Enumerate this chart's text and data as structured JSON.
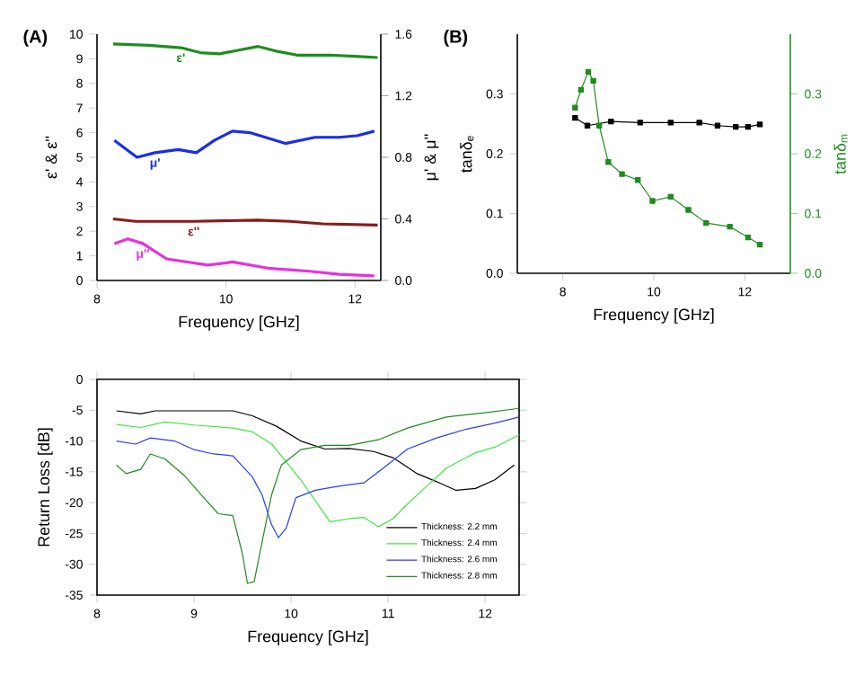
{
  "chart_data": [
    {
      "type": "line",
      "title": "(A)",
      "xlabel": "Frequency [GHz]",
      "ylabel": "ε' & ε''",
      "y2label": "μ' & μ''",
      "xlim": [
        8,
        12.4
      ],
      "xticks": [
        8,
        10,
        12
      ],
      "ylim": [
        0,
        10
      ],
      "yticks": [
        0,
        1,
        2,
        3,
        4,
        5,
        6,
        7,
        8,
        9,
        10
      ],
      "y2lim": [
        0,
        1.6
      ],
      "y2ticks": [
        {
          "value": 0,
          "label": "0.0"
        },
        0.4,
        0.8,
        1.2,
        1.6
      ],
      "legend": false,
      "marker": "none",
      "series": [
        {
          "name": "ε'",
          "color": "#1e8c1e",
          "x": [
            8.25,
            8.8,
            9.3,
            9.6,
            9.9,
            10.2,
            10.5,
            10.8,
            11.1,
            11.6,
            12.0,
            12.35
          ],
          "values": [
            9.6,
            9.55,
            9.45,
            9.25,
            9.2,
            9.35,
            9.5,
            9.3,
            9.15,
            9.15,
            9.1,
            9.05
          ]
        },
        {
          "name": "μ'",
          "color": "#1a2ee8",
          "axis": "y2",
          "x": [
            8.27,
            8.62,
            8.9,
            9.26,
            9.54,
            9.82,
            10.1,
            10.37,
            10.92,
            11.38,
            11.75,
            12.03,
            12.3
          ],
          "values": [
            0.91,
            0.8,
            0.83,
            0.85,
            0.83,
            0.91,
            0.97,
            0.96,
            0.89,
            0.93,
            0.93,
            0.94,
            0.97
          ]
        },
        {
          "name": "ε''",
          "color": "#8b1a1a",
          "x": [
            8.25,
            8.6,
            9.5,
            10.5,
            11.0,
            11.5,
            12.35
          ],
          "values": [
            2.5,
            2.4,
            2.4,
            2.45,
            2.4,
            2.3,
            2.25
          ]
        },
        {
          "name": "μ''",
          "color": "#e830e0",
          "axis": "y2",
          "x": [
            8.27,
            8.48,
            8.71,
            9.08,
            9.72,
            10.1,
            10.65,
            11.3,
            11.75,
            12.3
          ],
          "values": [
            0.24,
            0.27,
            0.24,
            0.14,
            0.1,
            0.12,
            0.08,
            0.06,
            0.04,
            0.03
          ]
        }
      ]
    },
    {
      "type": "line",
      "title": "(B)",
      "xlabel": "Frequency [GHz]",
      "ylabel": "tanδ$_{e}$",
      "y2label": "tanδ$_{m}$",
      "xlim": [
        7,
        13
      ],
      "xticks": [
        8,
        10,
        12
      ],
      "ylim": [
        0,
        0.4
      ],
      "yticks": [
        {
          "value": 0,
          "label": "0.0"
        },
        0.1,
        0.2,
        0.3
      ],
      "y2lim": [
        0,
        0.4
      ],
      "y2ticks": [
        {
          "value": 0,
          "label": "0.0"
        },
        0.1,
        0.2,
        0.3
      ],
      "legend": false,
      "marker": "square",
      "series": [
        {
          "color": "#000000",
          "x": [
            8.27,
            8.54,
            9.06,
            9.7,
            10.37,
            11.0,
            11.4,
            11.8,
            12.07,
            12.33
          ],
          "values": [
            0.26,
            0.247,
            0.254,
            0.252,
            0.252,
            0.252,
            0.247,
            0.245,
            0.245,
            0.249
          ]
        },
        {
          "color": "#1e8c1e",
          "axis": "y2",
          "x": [
            8.27,
            8.4,
            8.56,
            8.67,
            8.8,
            9.0,
            9.3,
            9.65,
            9.97,
            10.37,
            10.76,
            11.15,
            11.67,
            12.07,
            12.33
          ],
          "values": [
            0.277,
            0.307,
            0.337,
            0.322,
            0.247,
            0.186,
            0.166,
            0.156,
            0.121,
            0.128,
            0.106,
            0.084,
            0.078,
            0.06,
            0.048
          ]
        }
      ]
    },
    {
      "type": "line",
      "xlabel": "Frequency [GHz]",
      "ylabel": "Return Loss [dB]",
      "xlim": [
        8,
        12.35
      ],
      "xticks": [
        8,
        9,
        10,
        11,
        12
      ],
      "ylim": [
        -35,
        0
      ],
      "yticks": [
        -35,
        -30,
        -25,
        -20,
        -15,
        -10,
        -5,
        0
      ],
      "legend": "bottom right",
      "marker": "none",
      "series": [
        {
          "name": "Thickness: 2.2 mm",
          "color": "#000000",
          "x": [
            8.2,
            8.45,
            8.6,
            9.0,
            9.4,
            9.6,
            9.85,
            10.1,
            10.35,
            10.6,
            10.85,
            11.05,
            11.3,
            11.5,
            11.7,
            11.9,
            12.1,
            12.3
          ],
          "values": [
            -5.1,
            -5.6,
            -5.1,
            -5.1,
            -5.1,
            -5.9,
            -7.6,
            -10,
            -11.3,
            -11.2,
            -11.7,
            -12.7,
            -15.3,
            -16.6,
            -18,
            -17.7,
            -16.3,
            -13.9
          ]
        },
        {
          "name": "Thickness: 2.4 mm",
          "color": "#3ee83e",
          "x": [
            8.2,
            8.45,
            8.7,
            9.0,
            9.4,
            9.6,
            9.8,
            9.95,
            10.1,
            10.25,
            10.4,
            10.6,
            10.75,
            10.9,
            11.05,
            11.2,
            11.4,
            11.6,
            11.9,
            12.1,
            12.35
          ],
          "values": [
            -7.3,
            -7.8,
            -6.9,
            -7.4,
            -7.9,
            -8.5,
            -10.5,
            -13.4,
            -16.3,
            -19.7,
            -23.1,
            -22.6,
            -22.4,
            -23.9,
            -22.6,
            -20.2,
            -17.3,
            -14.4,
            -11.9,
            -11,
            -9
          ]
        },
        {
          "name": "Thickness: 2.6 mm",
          "color": "#2a3ef0",
          "x": [
            8.2,
            8.4,
            8.55,
            8.8,
            9.0,
            9.2,
            9.4,
            9.6,
            9.7,
            9.8,
            9.87,
            9.95,
            10.05,
            10.25,
            10.5,
            10.75,
            10.95,
            11.2,
            11.5,
            11.8,
            12.1,
            12.35
          ],
          "values": [
            -10,
            -10.5,
            -9.5,
            -10,
            -11.4,
            -12.1,
            -12.4,
            -15.8,
            -18.7,
            -23.6,
            -25.7,
            -24.1,
            -19.2,
            -18,
            -17.3,
            -16.8,
            -14.4,
            -11.3,
            -9.5,
            -8.1,
            -7.1,
            -6.1
          ]
        },
        {
          "name": "Thickness: 2.8 mm",
          "color": "#1e8c1e",
          "x": [
            8.2,
            8.3,
            8.45,
            8.55,
            8.7,
            8.9,
            9.1,
            9.25,
            9.4,
            9.5,
            9.55,
            9.62,
            9.7,
            9.8,
            9.9,
            10.1,
            10.35,
            10.6,
            10.9,
            11.2,
            11.6,
            12.0,
            12.35
          ],
          "values": [
            -13.9,
            -15.3,
            -14.6,
            -12.1,
            -12.9,
            -15.6,
            -19.2,
            -21.8,
            -22.1,
            -28.4,
            -33.1,
            -32.8,
            -26.5,
            -18.7,
            -13.9,
            -11.4,
            -10.7,
            -10.7,
            -9.8,
            -7.9,
            -6.1,
            -5.4,
            -4.7
          ]
        }
      ]
    }
  ]
}
